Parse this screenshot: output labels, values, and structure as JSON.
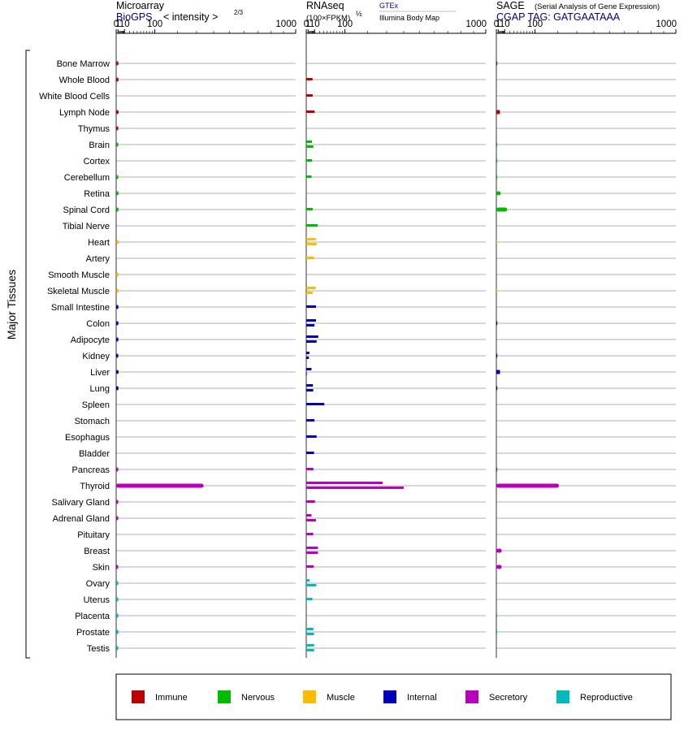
{
  "panels": {
    "microarray": {
      "title": "Microarray",
      "subtitle": "BioGPS",
      "unit_label": "< intensity >",
      "unit_exp": "2/3",
      "tick_labels": [
        "0",
        "1",
        "10",
        "100",
        "1000"
      ]
    },
    "rnaseq": {
      "title": "RNAseq",
      "unit_label": "(100×FPKM)",
      "unit_exp": "½",
      "source_1": "GTEx",
      "source_2": "Illumina Body Map",
      "tick_labels": [
        "0",
        "1",
        "10",
        "100",
        "1000"
      ]
    },
    "sage": {
      "title": "SAGE",
      "title_note": "(Serial Analysis of Gene Expression)",
      "subtitle": "CGAP TAG: GATGAATAAA",
      "tick_labels": [
        "0",
        "1",
        "10",
        "100",
        "1000"
      ]
    }
  },
  "y_axis_label": "Major Tissues",
  "colors": {
    "Immune": "#bb0000",
    "Nervous": "#00bb00",
    "Muscle": "#ffbb00",
    "Internal": "#0000bb",
    "Secretory": "#bb00bb",
    "Reproductive": "#00bbbb",
    "accent_text": "#000080",
    "gtex_text": "#000099"
  },
  "legend": [
    "Immune",
    "Nervous",
    "Muscle",
    "Internal",
    "Secretory",
    "Reproductive"
  ],
  "chart_data": {
    "type": "bar",
    "x_scale": "power 2/3",
    "x_ticks": [
      0,
      1,
      10,
      100,
      1000
    ],
    "xlim": [
      0,
      1000
    ],
    "categories": [
      "Bone Marrow",
      "Whole Blood",
      "White Blood Cells",
      "Lymph Node",
      "Thymus",
      "Brain",
      "Cortex",
      "Cerebellum",
      "Retina",
      "Spinal Cord",
      "Tibial Nerve",
      "Heart",
      "Artery",
      "Smooth Muscle",
      "Skeletal Muscle",
      "Small Intestine",
      "Colon",
      "Adipocyte",
      "Kidney",
      "Liver",
      "Lung",
      "Spleen",
      "Stomach",
      "Esophagus",
      "Bladder",
      "Pancreas",
      "Thyroid",
      "Salivary Gland",
      "Adrenal Gland",
      "Pituitary",
      "Breast",
      "Skin",
      "Ovary",
      "Uterus",
      "Placenta",
      "Prostate",
      "Testis"
    ],
    "groups": [
      "Immune",
      "Immune",
      "Immune",
      "Immune",
      "Immune",
      "Nervous",
      "Nervous",
      "Nervous",
      "Nervous",
      "Nervous",
      "Nervous",
      "Muscle",
      "Muscle",
      "Muscle",
      "Muscle",
      "Internal",
      "Internal",
      "Internal",
      "Internal",
      "Internal",
      "Internal",
      "Internal",
      "Internal",
      "Internal",
      "Internal",
      "Secretory",
      "Secretory",
      "Secretory",
      "Secretory",
      "Secretory",
      "Secretory",
      "Secretory",
      "Reproductive",
      "Reproductive",
      "Reproductive",
      "Reproductive",
      "Reproductive"
    ],
    "series": [
      {
        "name": "BioGPS",
        "values": [
          1.4,
          1.5,
          null,
          1.6,
          1.3,
          1.3,
          null,
          1.3,
          1.5,
          1.5,
          null,
          1.6,
          null,
          1.5,
          1.6,
          1.4,
          1.4,
          1.4,
          1.3,
          1.6,
          1.5,
          null,
          null,
          null,
          null,
          1.3,
          340,
          1.3,
          1.3,
          null,
          null,
          1.2,
          1.2,
          1.3,
          1.4,
          1.5,
          1.3
        ]
      },
      {
        "name": "GTEx",
        "values": [
          null,
          6.6,
          6.8,
          10,
          null,
          5.8,
          5.9,
          5.0,
          null,
          6.8,
          16.2,
          12.3,
          9.2,
          null,
          12.0,
          12.6,
          12.6,
          17.4,
          2.3,
          5.0,
          7.2,
          31.8,
          9.8,
          13.8,
          9.0,
          7.9,
          278,
          10.8,
          5.0,
          7.7,
          16.7,
          8.6,
          2.6,
          6.4,
          null,
          7.9,
          9.2
        ]
      },
      {
        "name": "Illumina Body Map",
        "values": [
          null,
          null,
          null,
          null,
          null,
          7.9,
          null,
          null,
          null,
          null,
          null,
          13.8,
          null,
          null,
          6.8,
          null,
          9.8,
          13.8,
          1.8,
          0.02,
          7.7,
          null,
          null,
          null,
          null,
          null,
          400,
          null,
          12.5,
          null,
          16.6,
          null,
          13.2,
          null,
          null,
          9.0,
          9.2
        ]
      },
      {
        "name": "SAGE",
        "values": [
          0.01,
          null,
          null,
          2.8,
          null,
          0.01,
          0.01,
          0.01,
          3.8,
          14.9,
          null,
          0.01,
          null,
          null,
          0.01,
          null,
          0.03,
          null,
          0.03,
          2.9,
          0.03,
          null,
          null,
          null,
          null,
          0.03,
          206,
          null,
          null,
          null,
          5.2,
          5.1,
          null,
          null,
          0.01,
          0.01,
          null
        ]
      }
    ]
  }
}
